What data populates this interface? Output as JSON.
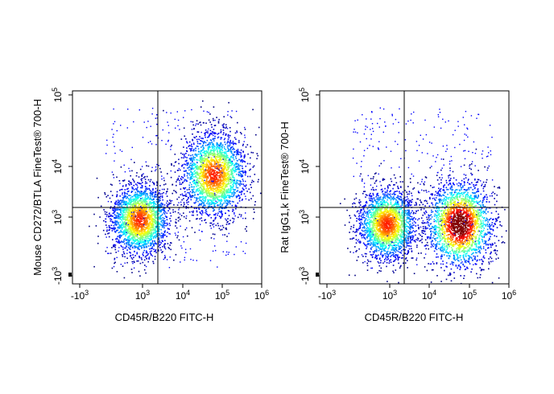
{
  "chart_data": [
    {
      "type": "scatter",
      "subtype": "flow-cytometry-density-dot-plot",
      "xlabel": "CD45R/B220 FITC-H",
      "ylabel": "Mouse CD272/BTLA FineTest® 700-H",
      "x_scale": "biexponential",
      "y_scale": "biexponential",
      "x_ticks": [
        {
          "value": -1000,
          "base": "-10",
          "exp": "3"
        },
        {
          "value": 1000,
          "base": "10",
          "exp": "3"
        },
        {
          "value": 10000,
          "base": "10",
          "exp": "4"
        },
        {
          "value": 100000,
          "base": "10",
          "exp": "5"
        },
        {
          "value": 1000000,
          "base": "10",
          "exp": "6"
        }
      ],
      "y_ticks": [
        {
          "value": -1000,
          "base": "-10",
          "exp": "3"
        },
        {
          "value": 1000,
          "base": "10",
          "exp": "3"
        },
        {
          "value": 10000,
          "base": "10",
          "exp": "4"
        },
        {
          "value": 100000,
          "base": "10",
          "exp": "5"
        }
      ],
      "x_gate": 2500,
      "y_gate": 1800,
      "populations": [
        {
          "x_center": 500,
          "y_center": 600,
          "density": "high"
        },
        {
          "x_center": 60000,
          "y_center": 7000,
          "density": "high"
        }
      ],
      "grid": false
    },
    {
      "type": "scatter",
      "subtype": "flow-cytometry-density-dot-plot",
      "xlabel": "CD45R/B220 FITC-H",
      "ylabel": "Rat IgG1,k FineTest® 700-H",
      "x_scale": "biexponential",
      "y_scale": "biexponential",
      "x_ticks": [
        {
          "value": -1000,
          "base": "-10",
          "exp": "3"
        },
        {
          "value": 1000,
          "base": "10",
          "exp": "3"
        },
        {
          "value": 10000,
          "base": "10",
          "exp": "4"
        },
        {
          "value": 100000,
          "base": "10",
          "exp": "5"
        },
        {
          "value": 1000000,
          "base": "10",
          "exp": "6"
        }
      ],
      "y_ticks": [
        {
          "value": -1000,
          "base": "-10",
          "exp": "3"
        },
        {
          "value": 1000,
          "base": "10",
          "exp": "3"
        },
        {
          "value": 10000,
          "base": "10",
          "exp": "4"
        },
        {
          "value": 100000,
          "base": "10",
          "exp": "5"
        }
      ],
      "x_gate": 2500,
      "y_gate": 1800,
      "populations": [
        {
          "x_center": 500,
          "y_center": 200,
          "density": "high"
        },
        {
          "x_center": 55000,
          "y_center": 200,
          "density": "very high"
        }
      ],
      "grid": false
    }
  ]
}
